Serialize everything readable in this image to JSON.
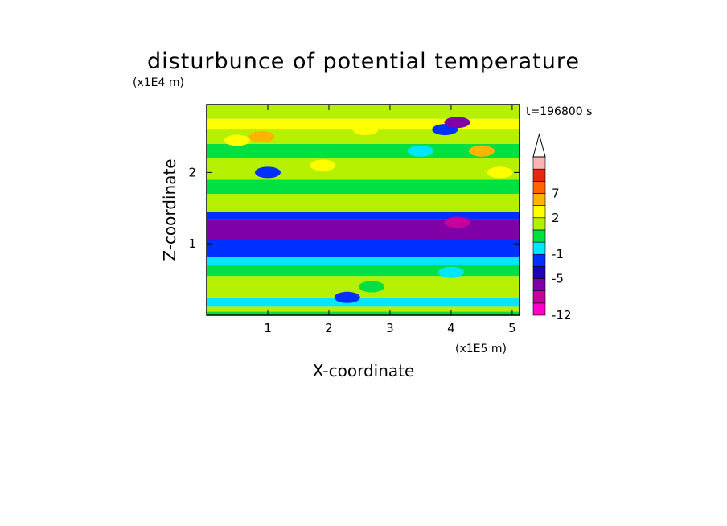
{
  "chart_data": {
    "type": "heatmap",
    "title": "disturbunce of potential temperature",
    "xlabel": "X-coordinate",
    "ylabel": "Z-coordinate",
    "x_unit": "(x1E5 m)",
    "y_unit": "(x1E4 m)",
    "time_label": "t=196800 s",
    "xlim": [
      0,
      5.12
    ],
    "ylim": [
      0,
      2.95
    ],
    "x_ticks": [
      "1",
      "2",
      "3",
      "4",
      "5"
    ],
    "y_ticks": [
      "1",
      "2"
    ],
    "colorbar": {
      "tick_labels": [
        "7",
        "2",
        "-1",
        "-5",
        "-12"
      ],
      "levels": [
        -12,
        -9,
        -7,
        -5,
        -3,
        -1,
        0,
        1,
        2,
        4,
        7,
        9,
        12
      ],
      "colors": [
        "#ff00c8",
        "#c8009b",
        "#8000a8",
        "#1e00b4",
        "#0030ff",
        "#00e6ff",
        "#00e040",
        "#b4f000",
        "#ffff00",
        "#ffb400",
        "#ff6400",
        "#e62814",
        "#ffb4b4"
      ],
      "extend_top": "white-triangle"
    },
    "bands": [
      {
        "z": [
          0.0,
          0.05
        ],
        "value": 0.5
      },
      {
        "z": [
          0.05,
          0.12
        ],
        "value": 1.5
      },
      {
        "z": [
          0.12,
          0.25
        ],
        "value": -0.5
      },
      {
        "z": [
          0.25,
          0.55
        ],
        "value": 1.5
      },
      {
        "z": [
          0.55,
          0.7
        ],
        "value": 0.5
      },
      {
        "z": [
          0.7,
          0.82
        ],
        "value": -0.5
      },
      {
        "z": [
          0.82,
          1.05
        ],
        "value": -2
      },
      {
        "z": [
          1.05,
          1.35
        ],
        "value": -6
      },
      {
        "z": [
          1.35,
          1.45
        ],
        "value": -2
      },
      {
        "z": [
          1.45,
          1.7
        ],
        "value": 1.5
      },
      {
        "z": [
          1.7,
          1.9
        ],
        "value": 0.5
      },
      {
        "z": [
          1.9,
          2.2
        ],
        "value": 1.5
      },
      {
        "z": [
          2.2,
          2.4
        ],
        "value": 0.5
      },
      {
        "z": [
          2.4,
          2.6
        ],
        "value": 1.5
      },
      {
        "z": [
          2.6,
          2.75
        ],
        "value": 3
      },
      {
        "z": [
          2.75,
          2.95
        ],
        "value": 1.5
      }
    ],
    "blobs": [
      {
        "x": 0.5,
        "z": 2.45,
        "value": 3
      },
      {
        "x": 0.9,
        "z": 2.5,
        "value": 5
      },
      {
        "x": 1.0,
        "z": 2.0,
        "value": -3
      },
      {
        "x": 1.9,
        "z": 2.1,
        "value": 3
      },
      {
        "x": 2.6,
        "z": 2.6,
        "value": 3
      },
      {
        "x": 3.5,
        "z": 2.3,
        "value": -0.5
      },
      {
        "x": 3.9,
        "z": 2.6,
        "value": -3
      },
      {
        "x": 4.1,
        "z": 2.7,
        "value": -6
      },
      {
        "x": 4.5,
        "z": 2.3,
        "value": 5
      },
      {
        "x": 4.8,
        "z": 2.0,
        "value": 3
      },
      {
        "x": 4.1,
        "z": 1.3,
        "value": -9
      },
      {
        "x": 2.3,
        "z": 0.25,
        "value": -2
      },
      {
        "x": 4.0,
        "z": 0.6,
        "value": -0.5
      },
      {
        "x": 2.7,
        "z": 0.4,
        "value": 0.5
      }
    ]
  }
}
